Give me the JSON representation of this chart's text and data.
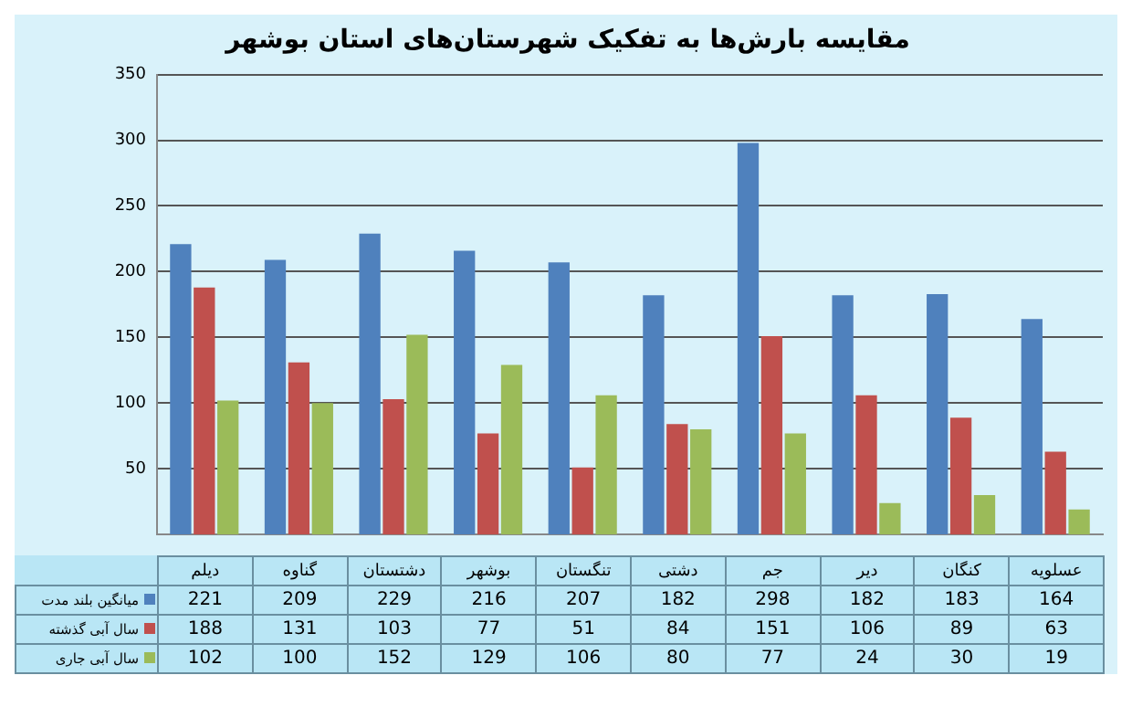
{
  "chart_data": {
    "type": "bar",
    "title": "مقایسه بارش‌ها به تفکیک شهرستان‌های استان بوشهر",
    "categories": [
      "دیلم",
      "گناوه",
      "دشتستان",
      "بوشهر",
      "تنگستان",
      "دشتی",
      "جم",
      "دیر",
      "کنگان",
      "عسلویه"
    ],
    "series": [
      {
        "name": "میانگین بلند مدت",
        "color": "#4f81bd",
        "values": [
          221,
          209,
          229,
          216,
          207,
          182,
          298,
          182,
          183,
          164
        ]
      },
      {
        "name": "سال آبی گذشته",
        "color": "#c0504d",
        "values": [
          188,
          131,
          103,
          77,
          51,
          84,
          151,
          106,
          89,
          63
        ]
      },
      {
        "name": "سال آبی جاری",
        "color": "#9bbb59",
        "values": [
          102,
          100,
          152,
          129,
          106,
          80,
          77,
          24,
          30,
          19
        ]
      }
    ],
    "ylim": [
      0,
      350
    ],
    "yticks": [
      50,
      100,
      150,
      200,
      250,
      300,
      350
    ],
    "grid": "y",
    "legend": "bottom left",
    "data_labels": true
  }
}
